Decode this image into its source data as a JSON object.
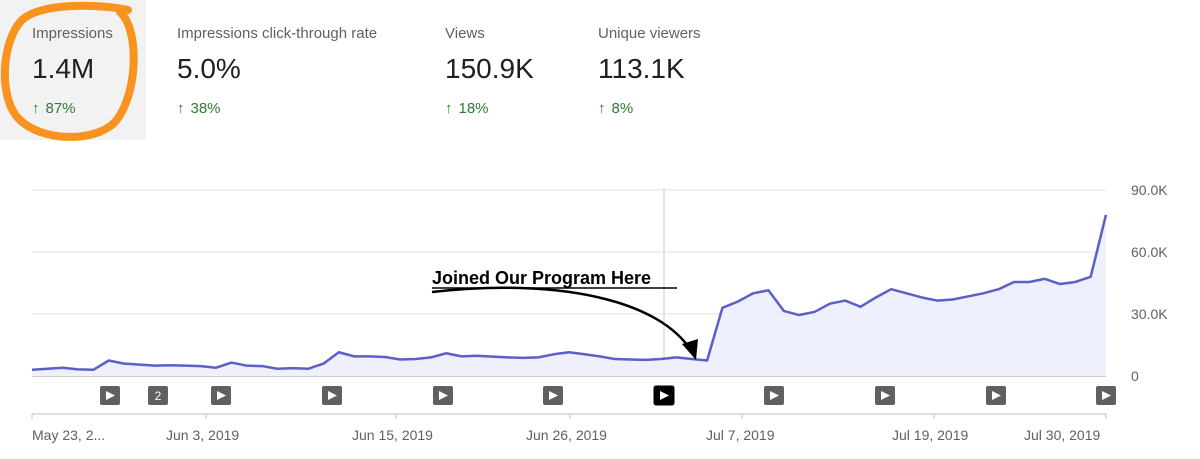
{
  "metrics": [
    {
      "label": "Impressions",
      "value": "1.4M",
      "change": "87%",
      "selected": true
    },
    {
      "label": "Impressions click-through rate",
      "value": "5.0%",
      "change": "38%",
      "selected": false
    },
    {
      "label": "Views",
      "value": "150.9K",
      "change": "18%",
      "selected": false
    },
    {
      "label": "Unique viewers",
      "value": "113.1K",
      "change": "8%",
      "selected": false
    }
  ],
  "arrow_up_glyph": "↑",
  "colors": {
    "line": "#5c5fc7",
    "area": "#eef0fb",
    "positive": "#2e7d32",
    "highlight": "#f7931e",
    "grid": "#e0e0e0"
  },
  "annotation": {
    "text": "Joined Our Program Here"
  },
  "chart_data": {
    "type": "area",
    "y_ticks": [
      "90.0K",
      "60.0K",
      "30.0K",
      "0"
    ],
    "ylim": [
      0,
      90000
    ],
    "x_tick_labels": [
      "May 23, 2...",
      "Jun 3, 2019",
      "Jun 15, 2019",
      "Jun 26, 2019",
      "Jul 7, 2019",
      "Jul 19, 2019",
      "Jul 30, 2019"
    ],
    "start_date": "2019-05-23",
    "end_date": "2019-07-31",
    "values": [
      3000,
      3500,
      4000,
      3200,
      3000,
      7500,
      6000,
      5500,
      5000,
      5200,
      5000,
      4800,
      4000,
      6500,
      5000,
      4800,
      3500,
      3800,
      3500,
      6000,
      11500,
      9500,
      9500,
      9200,
      8000,
      8200,
      9000,
      11000,
      9500,
      9800,
      9400,
      9000,
      8800,
      9000,
      10500,
      11500,
      10500,
      9500,
      8200,
      8000,
      7800,
      8200,
      9000,
      8200,
      7500,
      33000,
      36000,
      40000,
      41500,
      31500,
      29500,
      31000,
      35000,
      36500,
      33500,
      38000,
      42000,
      40000,
      38000,
      36500,
      37000,
      38500,
      40000,
      42000,
      45500,
      45500,
      47000,
      44500,
      45500,
      48000,
      78000
    ],
    "markers": [
      {
        "type": "play",
        "label": ""
      },
      {
        "type": "count",
        "label": "2"
      },
      {
        "type": "play",
        "label": ""
      },
      {
        "type": "play",
        "label": ""
      },
      {
        "type": "play",
        "label": ""
      },
      {
        "type": "play",
        "label": ""
      },
      {
        "type": "play-selected",
        "label": ""
      },
      {
        "type": "play",
        "label": ""
      },
      {
        "type": "play",
        "label": ""
      },
      {
        "type": "play",
        "label": ""
      },
      {
        "type": "play",
        "label": ""
      }
    ]
  }
}
